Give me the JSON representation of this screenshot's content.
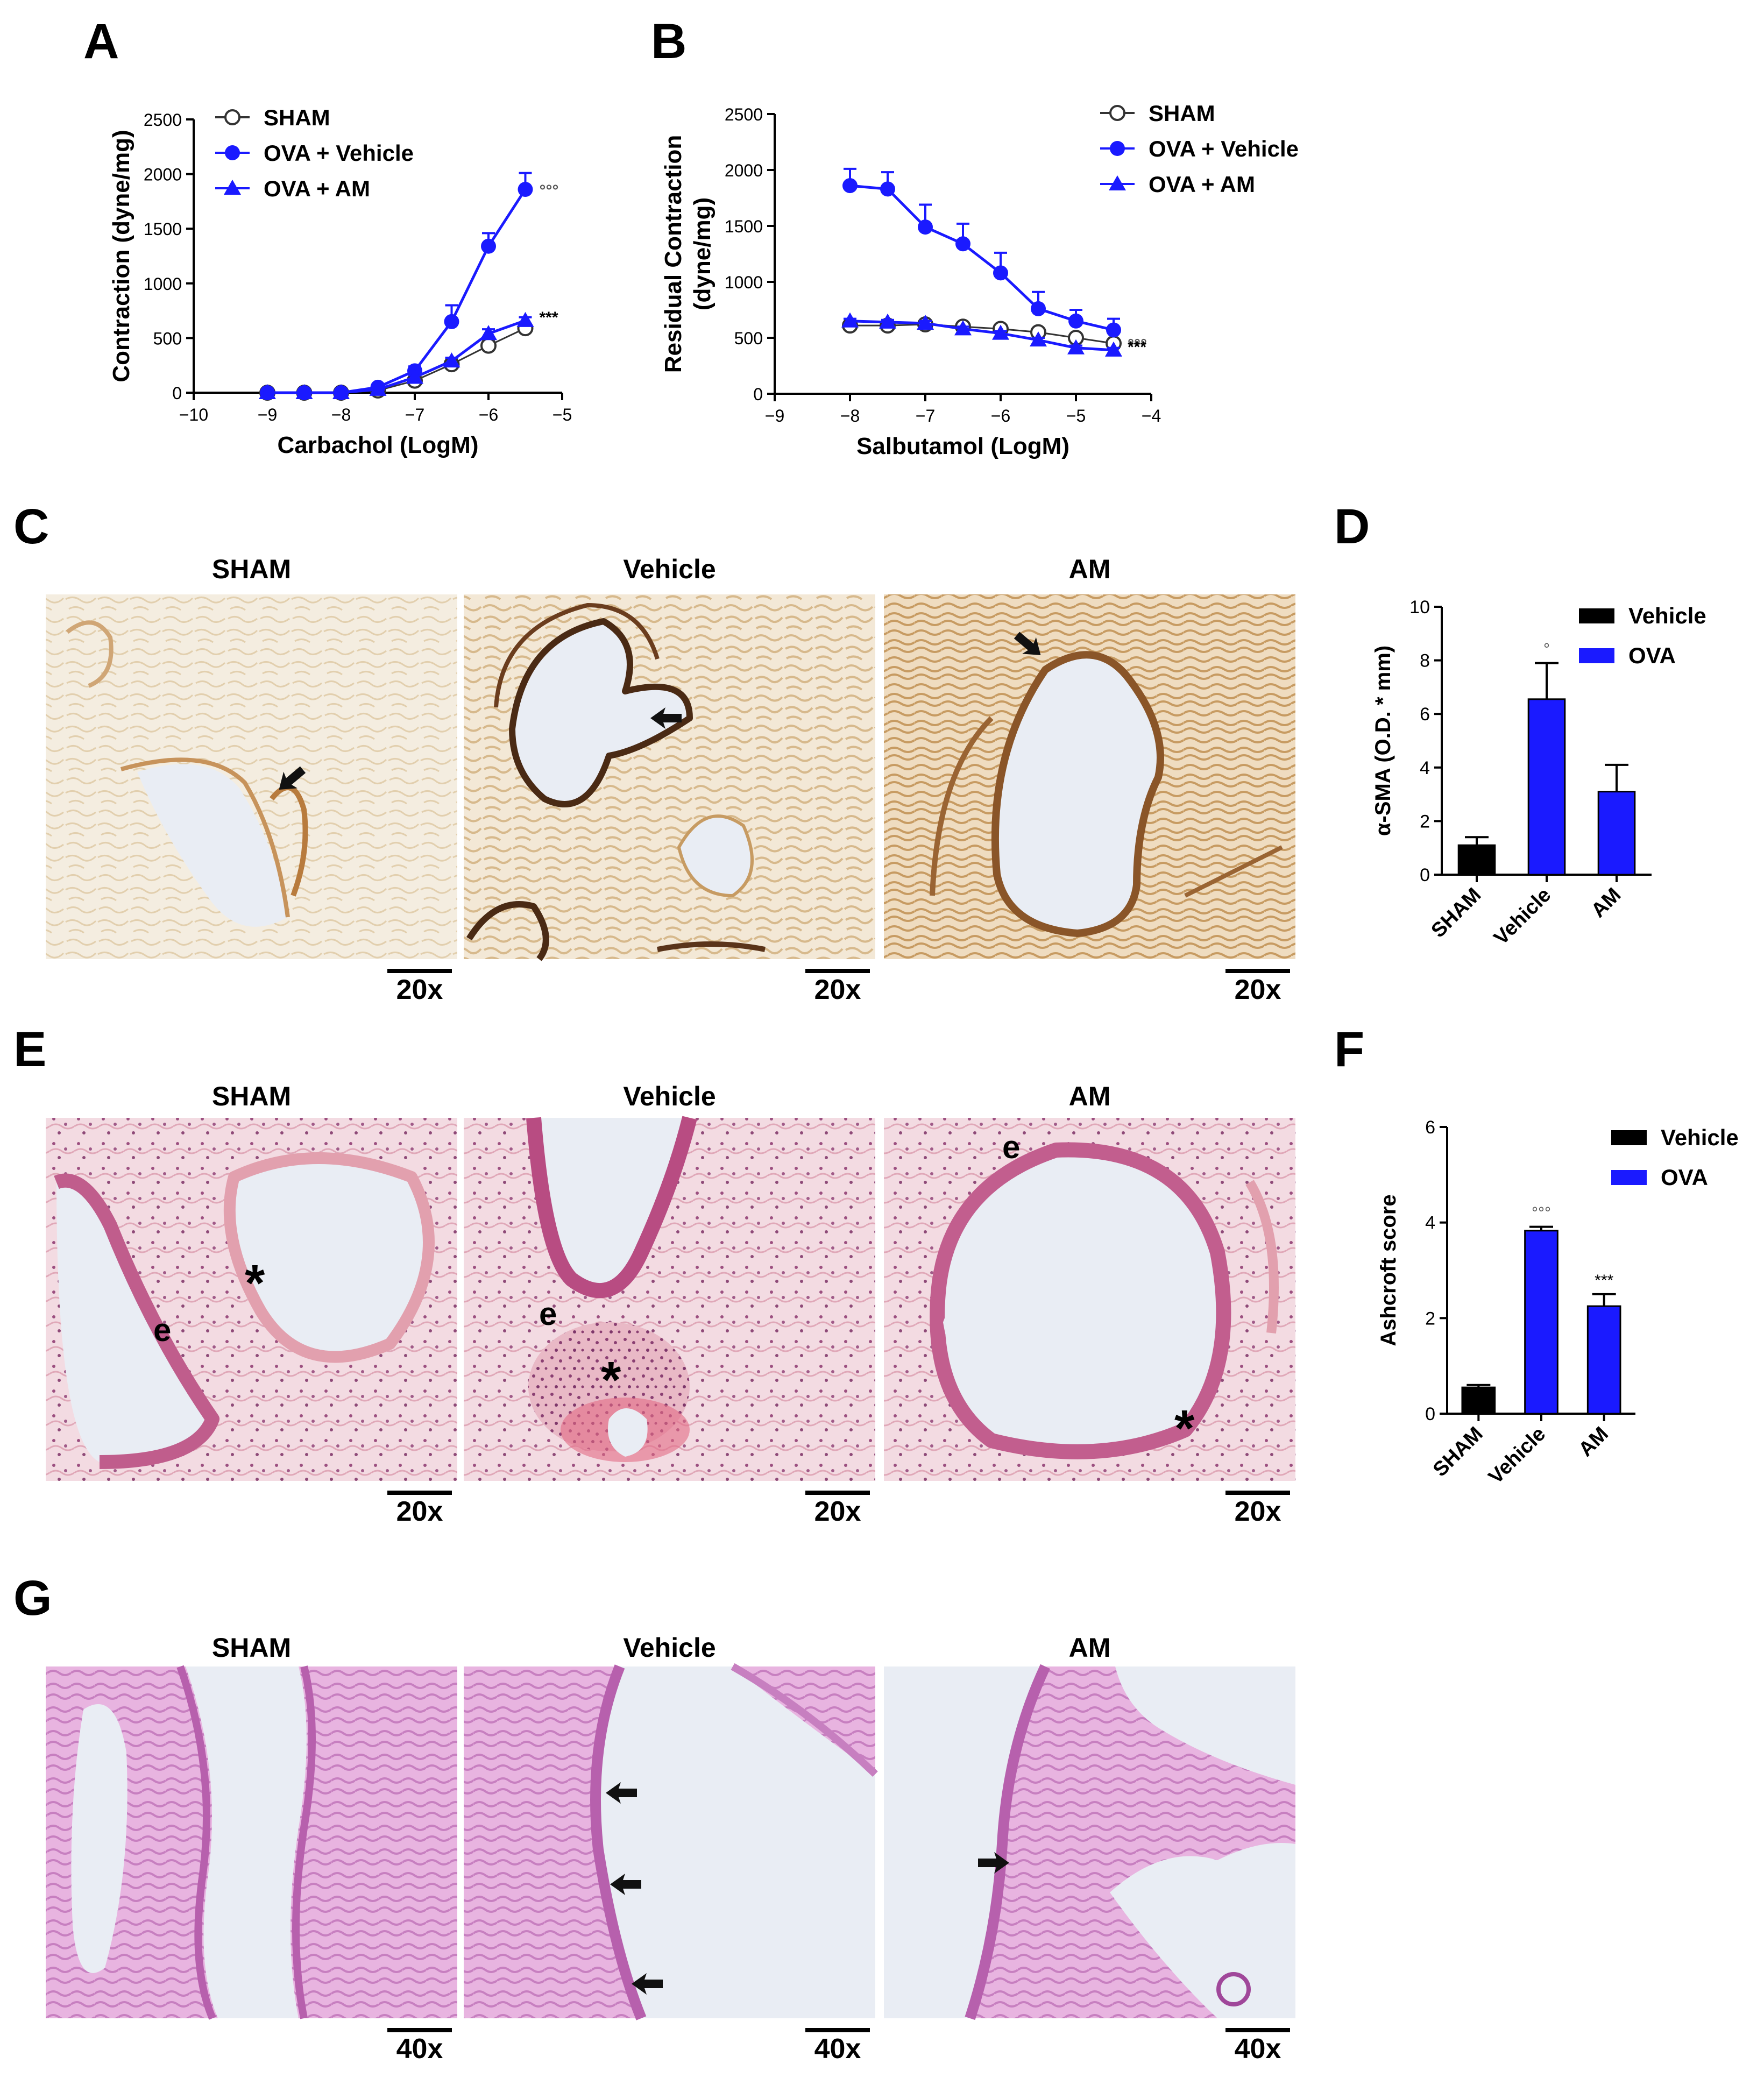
{
  "panels": {
    "A": "A",
    "B": "B",
    "C": "C",
    "D": "D",
    "E": "E",
    "F": "F",
    "G": "G"
  },
  "colors": {
    "blue": "#1a1aff",
    "black": "#000000",
    "gray": "#555555"
  },
  "chart_data": [
    {
      "id": "A",
      "type": "line",
      "xlabel": "Carbachol (LogM)",
      "ylabel": "Contraction (dyne/mg)",
      "xlim": [
        -10,
        -5
      ],
      "ylim": [
        0,
        2500
      ],
      "xticks": [
        -10,
        -9,
        -8,
        -7,
        -6,
        -5
      ],
      "xtick_labels": [
        "−10",
        "−9",
        "−8",
        "−7",
        "−6",
        "−5"
      ],
      "yticks": [
        0,
        500,
        1000,
        1500,
        2000,
        2500
      ],
      "ytick_labels": [
        "0",
        "500",
        "1000",
        "1500",
        "2000",
        "2500"
      ],
      "legend_position": "top-left",
      "grid": false,
      "series": [
        {
          "name": "SHAM",
          "marker": "open-circle",
          "color": "#333333",
          "x": [
            -9,
            -8.5,
            -8,
            -7.5,
            -7,
            -6.5,
            -6,
            -5.5
          ],
          "y": [
            0,
            0,
            0,
            20,
            110,
            260,
            430,
            590
          ],
          "err": [
            0,
            0,
            0,
            10,
            20,
            30,
            40,
            40
          ]
        },
        {
          "name": "OVA + Vehicle",
          "marker": "filled-circle",
          "color": "#1a1aff",
          "x": [
            -9,
            -8.5,
            -8,
            -7.5,
            -7,
            -6.5,
            -6,
            -5.5
          ],
          "y": [
            0,
            0,
            0,
            50,
            200,
            650,
            1340,
            1860
          ],
          "err": [
            0,
            0,
            0,
            15,
            40,
            150,
            120,
            150
          ]
        },
        {
          "name": "OVA + AM",
          "marker": "triangle",
          "color": "#1a1aff",
          "x": [
            -9,
            -8.5,
            -8,
            -7.5,
            -7,
            -6.5,
            -6,
            -5.5
          ],
          "y": [
            0,
            0,
            0,
            30,
            140,
            290,
            540,
            660
          ],
          "err": [
            0,
            0,
            0,
            10,
            20,
            30,
            40,
            30
          ]
        }
      ],
      "annotations": [
        {
          "text": "°°°",
          "series": "OVA + Vehicle"
        },
        {
          "text": "***",
          "series": "OVA + AM"
        }
      ]
    },
    {
      "id": "B",
      "type": "line",
      "xlabel": "Salbutamol  (LogM)",
      "ylabel": [
        "Residual Contraction",
        "(dyne/mg)"
      ],
      "xlim": [
        -9,
        -4
      ],
      "ylim": [
        0,
        2500
      ],
      "xticks": [
        -9,
        -8,
        -7,
        -6,
        -5,
        -4
      ],
      "xtick_labels": [
        "−9",
        "−8",
        "−7",
        "−6",
        "−5",
        "−4"
      ],
      "yticks": [
        0,
        500,
        1000,
        1500,
        2000,
        2500
      ],
      "ytick_labels": [
        "0",
        "500",
        "1000",
        "1500",
        "2000",
        "2500"
      ],
      "legend_position": "top-right",
      "grid": false,
      "series": [
        {
          "name": "SHAM",
          "marker": "open-circle",
          "color": "#333333",
          "x": [
            -8,
            -7.5,
            -7,
            -6.5,
            -6,
            -5.5,
            -5,
            -4.5
          ],
          "y": [
            610,
            610,
            620,
            600,
            580,
            550,
            500,
            450
          ],
          "err": [
            20,
            20,
            20,
            30,
            30,
            30,
            30,
            30
          ]
        },
        {
          "name": "OVA + Vehicle",
          "marker": "filled-circle",
          "color": "#1a1aff",
          "x": [
            -8,
            -7.5,
            -7,
            -6.5,
            -6,
            -5.5,
            -5,
            -4.5
          ],
          "y": [
            1860,
            1830,
            1490,
            1340,
            1080,
            760,
            650,
            570
          ],
          "err": [
            150,
            150,
            200,
            180,
            180,
            150,
            100,
            100
          ]
        },
        {
          "name": "OVA + AM",
          "marker": "triangle",
          "color": "#1a1aff",
          "x": [
            -8,
            -7.5,
            -7,
            -6.5,
            -6,
            -5.5,
            -5,
            -4.5
          ],
          "y": [
            650,
            640,
            630,
            580,
            540,
            480,
            410,
            390
          ],
          "err": [
            20,
            20,
            20,
            20,
            20,
            20,
            20,
            20
          ]
        }
      ],
      "annotations": [
        {
          "text": "°°°",
          "series": "SHAM"
        },
        {
          "text": "***",
          "series": "OVA + AM"
        }
      ]
    },
    {
      "id": "D",
      "type": "bar",
      "ylabel": "α-SMA (O.D. * mm)",
      "ylim": [
        0,
        10
      ],
      "yticks": [
        0,
        2,
        4,
        6,
        8,
        10
      ],
      "ytick_labels": [
        "0",
        "2",
        "4",
        "6",
        "8",
        "10"
      ],
      "categories": [
        "SHAM",
        "Vehicle",
        "AM"
      ],
      "values": [
        1.1,
        6.55,
        3.1
      ],
      "err": [
        0.3,
        1.35,
        1.0
      ],
      "bar_colors": [
        "#000000",
        "#1a1aff",
        "#1a1aff"
      ],
      "legend": [
        {
          "name": "Vehicle",
          "color": "#000000"
        },
        {
          "name": "OVA",
          "color": "#1a1aff"
        }
      ],
      "legend_position": "top-right",
      "annotations": [
        {
          "text": "°",
          "category": "Vehicle"
        }
      ]
    },
    {
      "id": "F",
      "type": "bar",
      "ylabel": "Ashcroft score",
      "ylim": [
        0,
        6
      ],
      "yticks": [
        0,
        2,
        4,
        6
      ],
      "ytick_labels": [
        "0",
        "2",
        "4",
        "6"
      ],
      "categories": [
        "SHAM",
        "Vehicle",
        "AM"
      ],
      "values": [
        0.55,
        3.83,
        2.25
      ],
      "err": [
        0.05,
        0.08,
        0.25
      ],
      "bar_colors": [
        "#000000",
        "#1a1aff",
        "#1a1aff"
      ],
      "legend": [
        {
          "name": "Vehicle",
          "color": "#000000"
        },
        {
          "name": "OVA",
          "color": "#1a1aff"
        }
      ],
      "legend_position": "top-right",
      "annotations": [
        {
          "text": "°°°",
          "category": "Vehicle"
        },
        {
          "text": "***",
          "category": "AM"
        }
      ]
    }
  ],
  "micrographs": {
    "C": {
      "stain": "immunohistochemistry",
      "tiles": [
        {
          "title": "SHAM",
          "scale": "20x"
        },
        {
          "title": "Vehicle",
          "scale": "20x"
        },
        {
          "title": "AM",
          "scale": "20x"
        }
      ]
    },
    "E": {
      "stain": "H&E",
      "tiles": [
        {
          "title": "SHAM",
          "scale": "20x",
          "labels": [
            "e",
            "*"
          ]
        },
        {
          "title": "Vehicle",
          "scale": "20x",
          "labels": [
            "e",
            "*"
          ]
        },
        {
          "title": "AM",
          "scale": "20x",
          "labels": [
            "e",
            "*"
          ]
        }
      ]
    },
    "G": {
      "stain": "PAS",
      "tiles": [
        {
          "title": "SHAM",
          "scale": "40x"
        },
        {
          "title": "Vehicle",
          "scale": "40x"
        },
        {
          "title": "AM",
          "scale": "40x"
        }
      ]
    }
  }
}
